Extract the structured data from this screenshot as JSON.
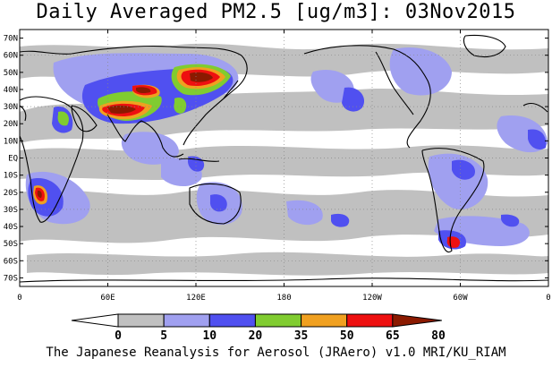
{
  "title": "Daily Averaged PM2.5 [ug/m3]: 03Nov2015",
  "footer": "The Japanese Reanalysis for Aerosol (JRAero) v1.0 MRI/KU_RIAM",
  "map": {
    "lat_labels": [
      "70N",
      "60N",
      "50N",
      "40N",
      "30N",
      "20N",
      "10N",
      "EQ",
      "10S",
      "20S",
      "30S",
      "40S",
      "50S",
      "60S",
      "70S"
    ],
    "lon_labels": [
      "0",
      "60E",
      "120E",
      "180",
      "120W",
      "60W",
      "0"
    ]
  },
  "colorbar": {
    "levels": [
      "0",
      "5",
      "10",
      "20",
      "35",
      "50",
      "65",
      "80"
    ],
    "colors": [
      "#ffffff",
      "#c0c0c0",
      "#a0a0f0",
      "#5050f0",
      "#80cc30",
      "#f0a020",
      "#ee1010",
      "#8b1a00"
    ]
  },
  "colors": {
    "gray": "#c0c0c0",
    "lightblue": "#a0a0f0",
    "blue": "#5050f0",
    "green": "#80cc30",
    "orange": "#f0a020",
    "red": "#ee1010",
    "darkred": "#8b1a00"
  }
}
